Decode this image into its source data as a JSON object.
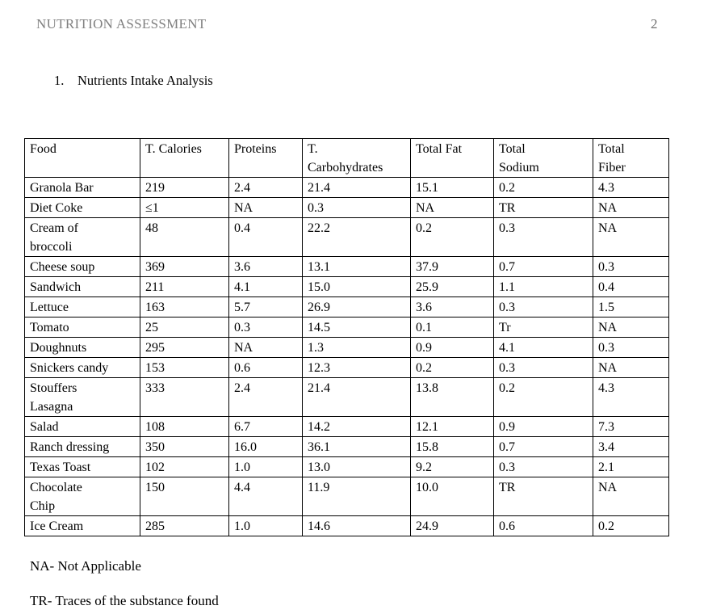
{
  "page": {
    "running_head": "NUTRITION ASSESSMENT",
    "page_number": "2",
    "heading_number": "1.",
    "heading_text": "Nutrients Intake Analysis",
    "note_na": "NA- Not Applicable",
    "note_tr": "TR- Traces of the substance found",
    "colors": {
      "running_head": "#808080",
      "body_text": "#000000",
      "table_border": "#000000",
      "background": "#ffffff"
    }
  },
  "table": {
    "columns": [
      "Food",
      "T. Calories",
      "Proteins",
      "T.\nCarbohydrates",
      "Total Fat",
      "Total\nSodium",
      "Total\nFiber"
    ],
    "rows": [
      [
        "Granola Bar",
        "219",
        "2.4",
        "21.4",
        "15.1",
        "0.2",
        "4.3"
      ],
      [
        "Diet Coke",
        "≤1",
        "NA",
        "0.3",
        "NA",
        "TR",
        "NA"
      ],
      [
        "Cream of\nbroccoli",
        "48",
        "0.4",
        "22.2",
        "0.2",
        "0.3",
        "NA"
      ],
      [
        "Cheese soup",
        "369",
        "3.6",
        "13.1",
        "37.9",
        "0.7",
        "0.3"
      ],
      [
        "Sandwich",
        "211",
        "4.1",
        "15.0",
        "25.9",
        "1.1",
        "0.4"
      ],
      [
        "Lettuce",
        "163",
        "5.7",
        "26.9",
        "3.6",
        "0.3",
        "1.5"
      ],
      [
        "Tomato",
        "25",
        "0.3",
        "14.5",
        "0.1",
        "Tr",
        "NA"
      ],
      [
        "Doughnuts",
        "295",
        "NA",
        "1.3",
        "0.9",
        "4.1",
        "0.3"
      ],
      [
        "Snickers candy",
        "153",
        "0.6",
        "12.3",
        "0.2",
        "0.3",
        "NA"
      ],
      [
        "Stouffers\nLasagna",
        "333",
        "2.4",
        "21.4",
        "13.8",
        "0.2",
        "4.3"
      ],
      [
        "Salad",
        "108",
        "6.7",
        "14.2",
        "12.1",
        "0.9",
        "7.3"
      ],
      [
        "Ranch dressing",
        "350",
        "16.0",
        "36.1",
        "15.8",
        "0.7",
        "3.4"
      ],
      [
        "Texas Toast",
        "102",
        "1.0",
        "13.0",
        "9.2",
        "0.3",
        "2.1"
      ],
      [
        "Chocolate\nChip",
        "150",
        "4.4",
        "11.9",
        "10.0",
        "TR",
        "NA"
      ],
      [
        "Ice Cream",
        "285",
        "1.0",
        "14.6",
        "24.9",
        "0.6",
        "0.2"
      ]
    ]
  }
}
